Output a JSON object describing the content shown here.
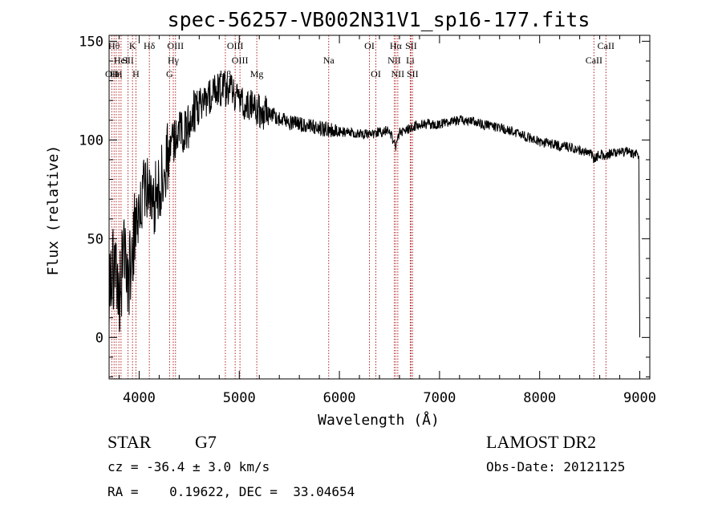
{
  "chart_data": {
    "type": "line",
    "title": "spec-56257-VB002N31V1_sp16-177.fits",
    "xlabel": "Wavelength (Å)",
    "ylabel": "Flux (relative)",
    "xlim": [
      3700,
      9100
    ],
    "ylim": [
      -21,
      153
    ],
    "xticks": [
      4000,
      5000,
      6000,
      7000,
      8000,
      9000
    ],
    "yticks": [
      0,
      50,
      100,
      150
    ],
    "grid": false,
    "series": [
      {
        "x": [
          3700,
          3750,
          3800,
          3850,
          3900,
          3950,
          4000,
          4050,
          4100,
          4150,
          4200,
          4250,
          4300,
          4350,
          4400,
          4450,
          4500,
          4550,
          4600,
          4650,
          4700,
          4750,
          4800,
          4850,
          4900,
          4950,
          5000,
          5100,
          5200,
          5300,
          5400,
          5500,
          5600,
          5700,
          5800,
          5900,
          6000,
          6100,
          6200,
          6300,
          6400,
          6500,
          6563,
          6600,
          6700,
          6800,
          6900,
          7000,
          7100,
          7200,
          7300,
          7400,
          7500,
          7600,
          7700,
          7800,
          7900,
          8000,
          8100,
          8200,
          8300,
          8400,
          8500,
          8542,
          8600,
          8662,
          8700,
          8800,
          8900,
          8990,
          9000
        ],
        "y": [
          30,
          35,
          20,
          40,
          30,
          55,
          60,
          75,
          80,
          70,
          75,
          85,
          95,
          100,
          102,
          105,
          108,
          115,
          118,
          120,
          122,
          124,
          125,
          126,
          125,
          123,
          120,
          117,
          115,
          113,
          111,
          109,
          108,
          107,
          106,
          105,
          104,
          104,
          103,
          103,
          104,
          105,
          96,
          104,
          106,
          108,
          108,
          108,
          109,
          110,
          110,
          108,
          107,
          106,
          105,
          103,
          101,
          99,
          98,
          97,
          96,
          95,
          94,
          90,
          93,
          92,
          93,
          94,
          94,
          92,
          0
        ]
      }
    ],
    "lines": [
      {
        "w": 3727,
        "label": "OII",
        "row": 2
      },
      {
        "w": 3750,
        "label": "Hθ",
        "row": 0
      },
      {
        "w": 3771,
        "label": "Hη",
        "row": 2
      },
      {
        "w": 3798,
        "label": "H",
        "row": 2
      },
      {
        "w": 3819,
        "label": "HeI",
        "row": 1
      },
      {
        "w": 3889,
        "label": "SII",
        "row": 1
      },
      {
        "w": 3934,
        "label": "K",
        "row": 0
      },
      {
        "w": 3968,
        "label": "H",
        "row": 2
      },
      {
        "w": 4102,
        "label": "Hδ",
        "row": 0
      },
      {
        "w": 4304,
        "label": "G",
        "row": 2
      },
      {
        "w": 4341,
        "label": "Hγ",
        "row": 1
      },
      {
        "w": 4363,
        "label": "OIII",
        "row": 0
      },
      {
        "w": 4861,
        "label": "Hβ",
        "row": 2
      },
      {
        "w": 4959,
        "label": "OIII",
        "row": 0
      },
      {
        "w": 5007,
        "label": "OIII",
        "row": 1
      },
      {
        "w": 5175,
        "label": "Mg",
        "row": 2
      },
      {
        "w": 5893,
        "label": "Na",
        "row": 1
      },
      {
        "w": 6300,
        "label": "OI",
        "row": 0
      },
      {
        "w": 6364,
        "label": "OI",
        "row": 2
      },
      {
        "w": 6548,
        "label": "NII",
        "row": 1
      },
      {
        "w": 6563,
        "label": "Hα",
        "row": 0
      },
      {
        "w": 6583,
        "label": "NII",
        "row": 2
      },
      {
        "w": 6708,
        "label": "Li",
        "row": 1
      },
      {
        "w": 6716,
        "label": "SII",
        "row": 0
      },
      {
        "w": 6731,
        "label": "SII",
        "row": 2
      },
      {
        "w": 8542,
        "label": "CaII",
        "row": 1
      },
      {
        "w": 8662,
        "label": "CaII",
        "row": 0
      }
    ]
  },
  "info": {
    "object_class": "STAR",
    "subclass": "G7",
    "cz": "cz = -36.4 ± 3.0 km/s",
    "coords": "RA =    0.19622, DEC =  33.04654",
    "survey": "LAMOST DR2",
    "obs_date": "Obs-Date: 20121125"
  },
  "colors": {
    "spectrum": "#000000",
    "line_markers": "#b22222",
    "axes": "#000000"
  }
}
